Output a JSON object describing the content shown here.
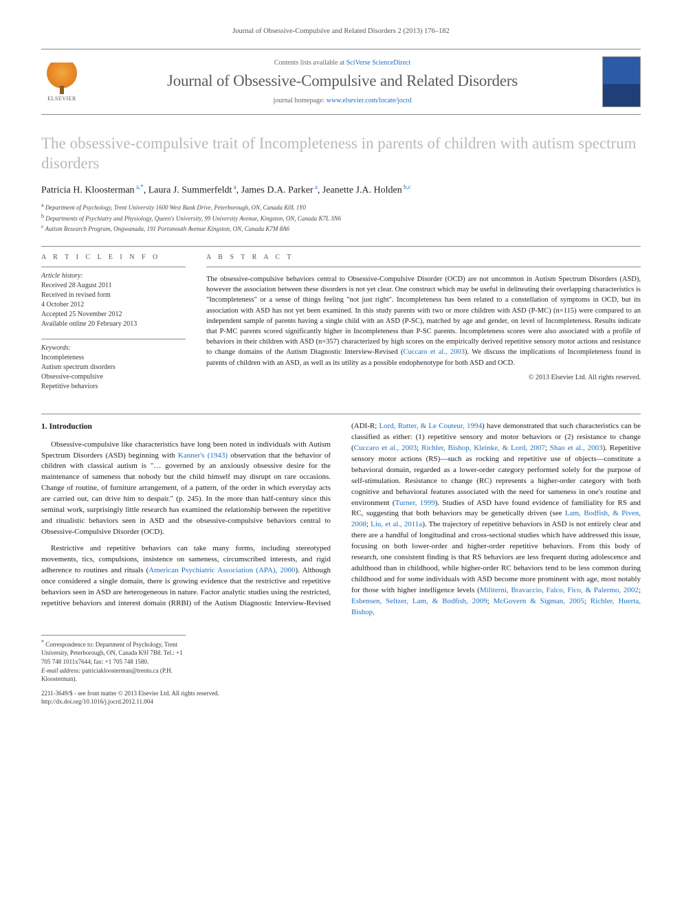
{
  "running_head": "Journal of Obsessive-Compulsive and Related Disorders 2 (2013) 176–182",
  "masthead": {
    "contents_prefix": "Contents lists available at ",
    "contents_link": "SciVerse ScienceDirect",
    "journal_name": "Journal of Obsessive-Compulsive and Related Disorders",
    "homepage_prefix": "journal homepage: ",
    "homepage_link": "www.elsevier.com/locate/jocrd",
    "publisher_logo_text": "ELSEVIER"
  },
  "title": "The obsessive-compulsive trait of Incompleteness in parents of children with autism spectrum disorders",
  "authors_html": "Patricia H. Kloosterman <sup>a,*</sup>, Laura J. Summerfeldt <sup>a</sup>, James D.A. Parker <sup>a</sup>, Jeanette J.A. Holden <sup>b,c</sup>",
  "affiliations": [
    {
      "sup": "a",
      "text": "Department of Psychology, Trent University 1600 West Bank Drive, Peterborough, ON, Canada K0L 1Y0"
    },
    {
      "sup": "b",
      "text": "Departments of Psychiatry and Physiology, Queen's University, 99 University Avenue, Kingston, ON, Canada K7L 3N6"
    },
    {
      "sup": "c",
      "text": "Autism Research Program, Ongwanada, 191 Portsmouth Avenue Kingston, ON, Canada K7M 8A6"
    }
  ],
  "article_info": {
    "head": "A R T I C L E  I N F O",
    "history_label": "Article history:",
    "history": [
      "Received 28 August 2011",
      "Received in revised form",
      "4 October 2012",
      "Accepted 25 November 2012",
      "Available online 20 February 2013"
    ],
    "keywords_label": "Keywords:",
    "keywords": [
      "Incompleteness",
      "Autism spectrum disorders",
      "Obsessive-compulsive",
      "Repetitive behaviors"
    ]
  },
  "abstract": {
    "head": "A B S T R A C T",
    "text": "The obsessive-compulsive behaviors central to Obsessive-Compulsive Disorder (OCD) are not uncommon in Autism Spectrum Disorders (ASD), however the association between these disorders is not yet clear. One construct which may be useful in delineating their overlapping characteristics is \"Incompleteness\" or a sense of things feeling \"not just right\". Incompleteness has been related to a constellation of symptoms in OCD, but its association with ASD has not yet been examined. In this study parents with two or more children with ASD (P-MC) (n=115) were compared to an independent sample of parents having a single child with an ASD (P-SC), matched by age and gender, on level of Incompleteness. Results indicate that P-MC parents scored significantly higher in Incompleteness than P-SC parents. Incompleteness scores were also associated with a profile of behaviors in their children with ASD (n=357) characterized by high scores on the empirically derived repetitive sensory motor actions and resistance to change domains of the Autism Diagnostic Interview-Revised (",
    "cite": "Cuccaro et al., 2003",
    "text_after": "). We discuss the implications of Incompleteness found in parents of children with an ASD, as well as its utility as a possible endophenotype for both ASD and OCD.",
    "copyright": "© 2013 Elsevier Ltd. All rights reserved."
  },
  "body": {
    "section_heading": "1. Introduction",
    "para1_a": "Obsessive-compulsive like characteristics have long been noted in individuals with Autism Spectrum Disorders (ASD) beginning with ",
    "para1_cite1": "Kanner's (1943)",
    "para1_b": " observation that the behavior of children with classical autism is \"… governed by an anxiously obsessive desire for the maintenance of sameness that nobody but the child himself may disrupt on rare occasions. Change of routine, of furniture arrangement, of a pattern, of the order in which everyday acts are carried out, can drive him to despair.\" (p. 245). In the more than half-century since this seminal work, surprisingly little research has examined the relationship between the repetitive and ritualistic behaviors seen in ASD and the obsessive-compulsive behaviors central to Obsessive-Compulsive Disorder (OCD).",
    "para2_a": "Restrictive and repetitive behaviors can take many forms, including stereotyped movements, tics, compulsions, insistence on sameness, circumscribed interests, and rigid adherence to routines and rituals (",
    "para2_cite1": "American Psychiatric Association (APA), 2000",
    "para2_b": "). Although once considered a single domain, there is growing evidence that the restrictive and repetitive behaviors seen in ASD are heterogeneous in nature. Factor analytic studies using the restricted, repetitive behaviors and interest domain (RRBI) of the Autism Diagnostic Interview-Revised (ADI-R; ",
    "para2_cite2": "Lord, Rutter, & Le Couteur, 1994",
    "para2_c": ") have demonstrated that such characteristics can be classified as either: (1) repetitive sensory and motor behaviors or (2) resistance to change (",
    "para2_cite3": "Cuccaro et al., 2003",
    "para2_d": "; ",
    "para2_cite4": "Richler, Bishop, Kleinke, & Lord, 2007",
    "para2_e": "; ",
    "para2_cite5": "Shao et al., 2003",
    "para2_f": "). Repetitive sensory motor actions (RS)—such as rocking and repetitive use of objects—constitute a behavioral domain, regarded as a lower-order category performed solely for the purpose of self-stimulation. Resistance to change (RC) represents a higher-order category with both cognitive and behavioral features associated with the need for sameness in one's routine and environment (",
    "para2_cite6": "Turner, 1999",
    "para2_g": "). Studies of ASD have found evidence of familiality for RS and RC, suggesting that both behaviors may be genetically driven (see ",
    "para2_cite7": "Lam, Bodfish, & Piven, 2008",
    "para2_h": "; ",
    "para2_cite8": "Liu, et al., 2011a",
    "para2_i": "). The trajectory of repetitive behaviors in ASD is not entirely clear and there are a handful of longitudinal and cross-sectional studies which have addressed this issue, focusing on both lower-order and higher-order repetitive behaviors. From this body of research, one consistent finding is that RS behaviors are less frequent during adolescence and adulthood than in childhood, while higher-order RC behaviors tend to be less common during childhood and for some individuals with ASD become more prominent with age, most notably for those with higher intelligence levels (",
    "para2_cite9": "Militerni, Bravaccio, Falco, Fico, & Palermo, 2002",
    "para2_j": "; ",
    "para2_cite10": "Esbensen, Seltzer, Lam, & Bodfish, 2009",
    "para2_k": "; ",
    "para2_cite11": "McGovern & Sigman, 2005",
    "para2_l": "; ",
    "para2_cite12": "Richler, Huerta, Bishop,"
  },
  "footer": {
    "corr_sup": "*",
    "corr_text": "Correspondence to: Department of Psychology, Trent University, Peterborough, ON, Canada K9J 7B8. Tel.: +1 705 748 1011x7644; fax: +1 705 748 1580.",
    "email_label": "E-mail address:",
    "email": "patriciakloosterman@trentu.ca (P.H. Kloosterman).",
    "issn_line": "2211-3649/$ - see front matter © 2013 Elsevier Ltd. All rights reserved.",
    "doi": "http://dx.doi.org/10.1016/j.jocrd.2012.11.004"
  },
  "colors": {
    "link": "#1b6fbf",
    "title_gray": "#b9b9b9",
    "rule": "#888888",
    "text": "#1a1a1a"
  }
}
